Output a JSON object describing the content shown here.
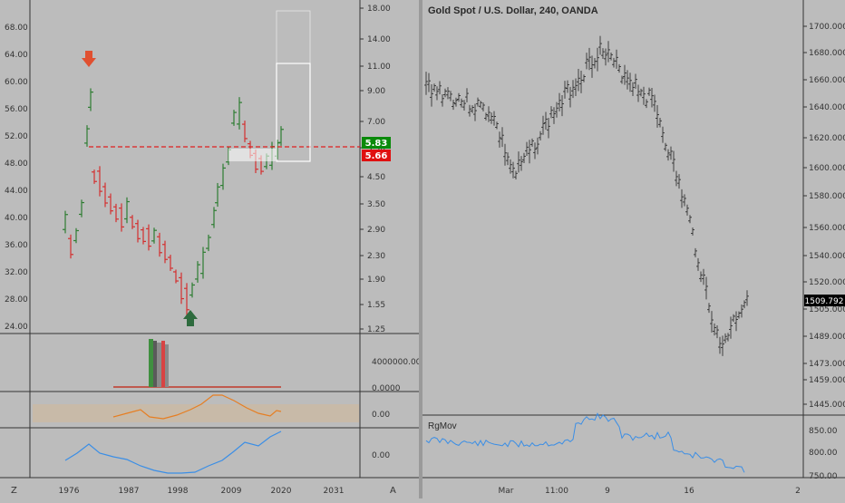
{
  "left_chart": {
    "price_ticks": [
      "68.00",
      "64.00",
      "60.00",
      "56.00",
      "52.00",
      "48.00",
      "44.00",
      "40.00",
      "36.00",
      "32.00",
      "28.00",
      "24.00"
    ],
    "ratio_ticks": [
      "18.00",
      "14.00",
      "11.00",
      "9.00",
      "7.00",
      "5.50",
      "4.50",
      "3.50",
      "2.90",
      "2.30",
      "1.90",
      "1.55",
      "1.25"
    ],
    "volume_ticks": [
      "4000000.0000",
      "0.0000"
    ],
    "osc1_ticks": [
      "0.00"
    ],
    "osc2_ticks": [
      "0.00"
    ],
    "time_ticks": [
      "1976",
      "1987",
      "1998",
      "2009",
      "2020",
      "2031"
    ],
    "badge_green": "5.83",
    "badge_red": "5.66",
    "corner_left": "Z",
    "corner_right": "A"
  },
  "right_chart": {
    "title": "Gold Spot / U.S. Dollar, 240, OANDA",
    "price_ticks": [
      "1700.000",
      "1680.000",
      "1660.000",
      "1640.000",
      "1620.000",
      "1600.000",
      "1580.000",
      "1560.000",
      "1540.000",
      "1520.000",
      "1505.000",
      "1489.000",
      "1473.000",
      "1459.000",
      "1445.000"
    ],
    "last_price": "1509.792",
    "indicator_name": "RgMov",
    "indicator_ticks": [
      "850.00",
      "800.00",
      "750.00"
    ],
    "time_ticks": [
      "Mar",
      "11:00",
      "9",
      "16",
      "2"
    ]
  },
  "colors": {
    "background": "#bcbcbc",
    "up": "#2e7d32",
    "down": "#d32f2f",
    "osc_orange": "#e67e22",
    "osc_blue": "#3a8ee6",
    "badge_green": "#0a8a0a",
    "badge_red": "#e01010"
  }
}
